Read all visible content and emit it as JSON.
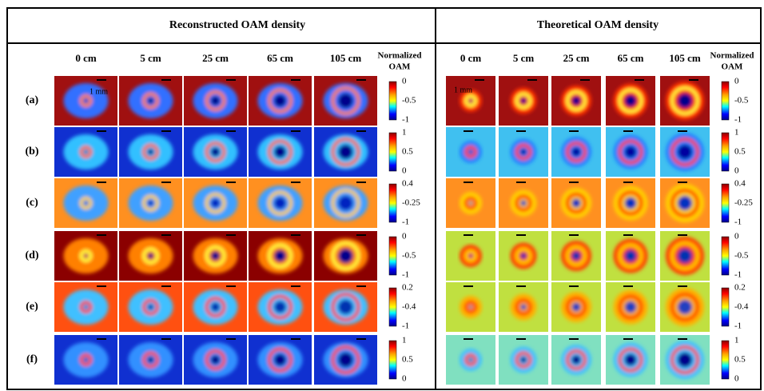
{
  "panels": [
    {
      "title": "Reconstructed OAM density",
      "columns": [
        "0 cm",
        "5 cm",
        "25 cm",
        "65 cm",
        "105 cm"
      ],
      "colorbar_label": [
        "Normalized",
        "OAM"
      ]
    },
    {
      "title": "Theoretical OAM density",
      "columns": [
        "0 cm",
        "5 cm",
        "25 cm",
        "65 cm",
        "105 cm"
      ],
      "colorbar_label": [
        "Normalized",
        "OAM"
      ]
    }
  ],
  "rows": [
    {
      "label": "(a)",
      "colorbar_ticks": [
        "0",
        "-0.5",
        "-1"
      ]
    },
    {
      "label": "(b)",
      "colorbar_ticks": [
        "1",
        "0.5",
        "0"
      ]
    },
    {
      "label": "(c)",
      "colorbar_ticks": [
        "0.4",
        "-0.25",
        "-1"
      ]
    },
    {
      "label": "(d)",
      "colorbar_ticks": [
        "0",
        "-0.5",
        "-1"
      ]
    },
    {
      "label": "(e)",
      "colorbar_ticks": [
        "0.2",
        "-0.4",
        "-1"
      ]
    },
    {
      "label": "(f)",
      "colorbar_ticks": [
        "1",
        "0.5",
        "0"
      ]
    }
  ],
  "scale_label": "1 mm"
}
